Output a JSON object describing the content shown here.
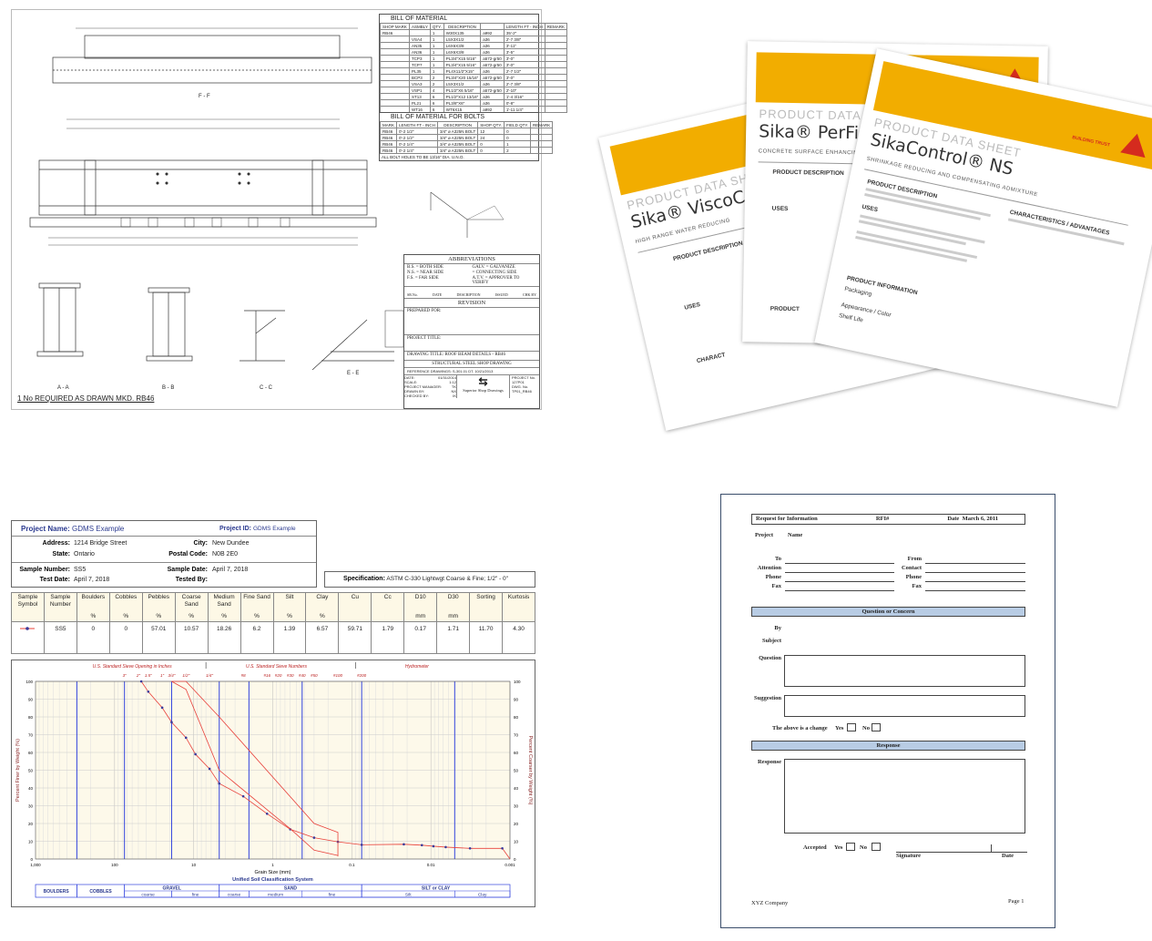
{
  "drawing": {
    "section_labels": [
      "F - F",
      "A - A",
      "B - B",
      "C - C",
      "E - E"
    ],
    "required_note": "1 No REQUIRED AS DRAWN MKD. RB46",
    "bom": {
      "title": "BILL OF MATERIAL",
      "headers": [
        "SHOP MARK",
        "ASMBLY",
        "QTY.",
        "DESCRIPTION",
        "",
        "LENGTH FT - INCH",
        "REMARK"
      ],
      "rows": [
        [
          "RB46",
          "",
          "1",
          "W30X135",
          "a992",
          "35'-2\"",
          ""
        ],
        [
          "",
          "VSA4",
          "1",
          "L5X3X1/2",
          "a36",
          "2'-7 3/8\"",
          ""
        ],
        [
          "",
          "AN35",
          "1",
          "L6X6X3/8",
          "a36",
          "3'-11\"",
          ""
        ],
        [
          "",
          "AN36",
          "1",
          "L6X6X3/8",
          "a36",
          "3'-5\"",
          ""
        ],
        [
          "",
          "TCP3",
          "1",
          "PL3/4\"X15 5/16\"",
          "a572-gr50",
          "3'-0\"",
          ""
        ],
        [
          "",
          "TCP7",
          "1",
          "PL3/4\"X15 5/16\"",
          "a572-gr50",
          "3'-0\"",
          ""
        ],
        [
          "",
          "PL35",
          "1",
          "PL4X11/2\"X15\"",
          "a36",
          "2'-7 1/2\"",
          ""
        ],
        [
          "",
          "BCP3",
          "2",
          "PL3/4\"X20 15/16\"",
          "a572-gr50",
          "3'-0\"",
          ""
        ],
        [
          "",
          "VSA3",
          "2",
          "L5X3X1/2",
          "a36",
          "2'-7 3/8\"",
          ""
        ],
        [
          "",
          "VSP1",
          "4",
          "PL1/2\"X6 5/16\"",
          "a572-gr50",
          "2'-10\"",
          ""
        ],
        [
          "",
          "ST13",
          "6",
          "PL1/2\"X12 13/16\"",
          "a36",
          "1'-4 3/16\"",
          ""
        ],
        [
          "",
          "PL21",
          "6",
          "PL3/8\"X6\"",
          "a36",
          "0'-8\"",
          ""
        ],
        [
          "",
          "WT16",
          "6",
          "WT6X15",
          "a992",
          "1'-11 1/4\"",
          ""
        ]
      ]
    },
    "bolt_bom": {
      "title": "BILL OF MATERIAL FOR BOLTS",
      "headers": [
        "MARK",
        "LENGTH FT - INCH",
        "DESCRIPTION",
        "SHOP QTY.",
        "FIELD QTY.",
        "REMARK"
      ],
      "rows": [
        [
          "RB46",
          "0'-2 1/2\"",
          "3/4\" ø A325N BOLT",
          "12",
          "0",
          ""
        ],
        [
          "RB46",
          "0'-2 1/2\"",
          "3/4\" ø A325N BOLT",
          "24",
          "0",
          ""
        ],
        [
          "RB46",
          "0'-2 1/4\"",
          "3/4\" ø A325N BOLT",
          "0",
          "1",
          ""
        ],
        [
          "RB46",
          "0'-2 1/4\"",
          "3/4\" ø A325N BOLT",
          "0",
          "2",
          ""
        ]
      ],
      "note": "ALL BOLT HOLES TO BE 13/16\" DIA. U.N.O."
    },
    "title_block": {
      "abbrev_title": "ABBREVIATIONS",
      "abbrevs": [
        "B.S. = BOTH SIDE",
        "GALV. = GALVANIZE",
        "N.S. = NEAR SIDE",
        "= CONNECTING SIDE",
        "F.S. = FAR SIDE",
        "A.T.V. = APPROVER TO VERIFY"
      ],
      "revision_headers": [
        "SR.No.",
        "DATE",
        "DESCRIPTION",
        "ISSUED",
        "CHK BY"
      ],
      "revision": "REVISION",
      "prepared_for": "PREPARED FOR:",
      "project_title": "PROJECT TITLE:",
      "drawing_title": "DRAWING TITLE: ROOF BEAM DETAILS - RB46",
      "drawing_type": "STRUCTURAL STEEL SHOP DRAWING",
      "reference": "REFERENCE DRAWINGS: S-301.01 DT. 10/21/2013",
      "date_label": "DATE:",
      "date": "01/31/2014",
      "scale_label": "SCALE:",
      "scale": "1:12",
      "pm_label": "PROJECT MANAGER:",
      "pm": "TK",
      "drawn_label": "DRAWN BY:",
      "drawn": "NX",
      "checked_label": "CHECKED BY:",
      "checked": "IK",
      "company": "Superior Shop Drawings",
      "project_no_label": "PROJECT No.",
      "project_no": "127P01",
      "dwg_no_label": "DWG. No.",
      "dwg_no": "TP01_RB46"
    }
  },
  "sika": {
    "brand_color": "#f2ad00",
    "logo_color": "#d52b1e",
    "sheets": [
      {
        "header": "PRODUCT DATA SHEET",
        "name": "Sika® ViscoCrete",
        "subtitle": "HIGH RANGE WATER REDUCING",
        "sections": [
          "PRODUCT DESCRIPTION",
          "USES",
          "CHARACT"
        ]
      },
      {
        "header": "PRODUCT DATA SHEET",
        "name": "Sika® PerFin-305",
        "subtitle": "CONCRETE SURFACE ENHANCING A",
        "sections": [
          "PRODUCT DESCRIPTION",
          "USES",
          "PRODUCT"
        ]
      },
      {
        "header": "PRODUCT DATA SHEET",
        "name": "SikaControl® NS",
        "subtitle": "SHRINKAGE REDUCING AND COMPENSATING ADMIXTURE",
        "tagline": "BUILDING TRUST",
        "sections": [
          "PRODUCT DESCRIPTION",
          "USES",
          "CHARACTERISTICS / ADVANTAGES",
          "PRODUCT INFORMATION"
        ],
        "info_rows": [
          "Packaging",
          "Appearance / Color",
          "Shelf Life"
        ]
      }
    ]
  },
  "soil": {
    "project_name_label": "Project Name:",
    "project_name": "GDMS Example",
    "project_id_label": "Project ID:",
    "project_id": "GDMS Example",
    "address_label": "Address:",
    "address": "1214 Bridge Street",
    "city_label": "City:",
    "city": "New Dundee",
    "state_label": "State:",
    "state": "Ontario",
    "postal_label": "Postal Code:",
    "postal": "N0B 2E0",
    "sample_number_label": "Sample Number:",
    "sample_number": "SS5",
    "sample_date_label": "Sample Date:",
    "sample_date": "April 7, 2018",
    "test_date_label": "Test Date:",
    "test_date": "April 7, 2018",
    "tested_by_label": "Tested By:",
    "spec_label": "Specification:",
    "spec": "ASTM C-330 Lightwgt Coarse & Fine; 1/2\" - 0\"",
    "table": {
      "headers": [
        {
          "name": "Sample Symbol",
          "unit": ""
        },
        {
          "name": "Sample Number",
          "unit": ""
        },
        {
          "name": "Boulders",
          "unit": "%"
        },
        {
          "name": "Cobbles",
          "unit": "%"
        },
        {
          "name": "Pebbles",
          "unit": "%"
        },
        {
          "name": "Coarse Sand",
          "unit": "%"
        },
        {
          "name": "Medium Sand",
          "unit": "%"
        },
        {
          "name": "Fine Sand",
          "unit": "%"
        },
        {
          "name": "Silt",
          "unit": "%"
        },
        {
          "name": "Clay",
          "unit": "%"
        },
        {
          "name": "Cu",
          "unit": ""
        },
        {
          "name": "Cc",
          "unit": ""
        },
        {
          "name": "D10",
          "unit": "mm"
        },
        {
          "name": "D30",
          "unit": "mm"
        },
        {
          "name": "Sorting",
          "unit": ""
        },
        {
          "name": "Kurtosis",
          "unit": ""
        }
      ],
      "row": [
        "",
        "SS5",
        "0",
        "0",
        "57.01",
        "10.57",
        "18.26",
        "6.2",
        "1.39",
        "6.57",
        "59.71",
        "1.79",
        "0.17",
        "1.71",
        "11.70",
        "4.30"
      ]
    }
  },
  "chart_data": {
    "type": "line",
    "xlabel": "Grain Size (mm)",
    "ylabel": "Percent Finer by Weight (%)",
    "y2label": "Percent Coarser by Weight (%)",
    "x_scale": "log",
    "x_reversed": true,
    "xlim": [
      1000,
      0.001
    ],
    "ylim": [
      0,
      100
    ],
    "x_ticks": [
      {
        "v": 1000,
        "t": "1,000"
      },
      {
        "v": 100,
        "t": "100"
      },
      {
        "v": 10,
        "t": "10"
      },
      {
        "v": 1,
        "t": "1"
      },
      {
        "v": 0.1,
        "t": "0.1"
      },
      {
        "v": 0.01,
        "t": "0.01"
      },
      {
        "v": 0.001,
        "t": "0.001"
      }
    ],
    "y_ticks": [
      0,
      10,
      20,
      30,
      40,
      50,
      60,
      70,
      80,
      90,
      100
    ],
    "y2_ticks": [
      100,
      90,
      80,
      70,
      60,
      50,
      40,
      30,
      20,
      10,
      0
    ],
    "grid": true,
    "background": "#fdf9ea",
    "top_headers": [
      "U.S. Standard Sieve Opening in Inches",
      "U.S. Standard Sieve Numbers",
      "Hydrometer"
    ],
    "sieves": [
      {
        "t": "3\"",
        "v": 75
      },
      {
        "t": "2\"",
        "v": 50
      },
      {
        "t": "1.5\"",
        "v": 37.5
      },
      {
        "t": "1\"",
        "v": 25
      },
      {
        "t": "3/4\"",
        "v": 19
      },
      {
        "t": "1/2\"",
        "v": 12.5
      },
      {
        "t": "1/4\"",
        "v": 6.3
      },
      {
        "t": "#8",
        "v": 2.36
      },
      {
        "t": "#16",
        "v": 1.18
      },
      {
        "t": "#20",
        "v": 0.85
      },
      {
        "t": "#30",
        "v": 0.6
      },
      {
        "t": "#40",
        "v": 0.425
      },
      {
        "t": "#50",
        "v": 0.3
      },
      {
        "t": "#100",
        "v": 0.15
      },
      {
        "t": "#200",
        "v": 0.075
      }
    ],
    "boundaries": [
      300,
      75,
      19,
      4.75,
      2,
      0.425,
      0.075,
      0.005
    ],
    "series": [
      {
        "name": "SS5",
        "color": "#e8403a",
        "marker_color": "#3a3a9a",
        "x": [
          46,
          37.5,
          25,
          19,
          12.5,
          9.5,
          6.3,
          4.75,
          2.36,
          1.18,
          0.6,
          0.3,
          0.15,
          0.075,
          0.022,
          0.013,
          0.0093,
          0.0065,
          0.0032,
          0.00125,
          0.001
        ],
        "y": [
          100,
          94.2,
          85.2,
          77,
          68.3,
          59,
          50.8,
          42.5,
          35.3,
          25.5,
          16.7,
          12,
          9.7,
          8,
          8.3,
          7.8,
          7.2,
          6.7,
          6,
          6,
          0
        ],
        "markers": true
      },
      {
        "color": "#e8403a",
        "x": [
          19,
          12.5,
          4.75,
          0.3,
          0.15,
          0.15
        ],
        "y": [
          100,
          100,
          80,
          20,
          15,
          1.5
        ]
      },
      {
        "color": "#e8403a",
        "x": [
          19,
          12.5,
          4.75,
          0.6,
          0.3,
          0.15
        ],
        "y": [
          100,
          95.5,
          50,
          17,
          5,
          2
        ]
      }
    ],
    "uscs": {
      "title": "Unified Soil Classification System",
      "groups": [
        {
          "t": "BOULDERS",
          "from": 1000,
          "to": 300
        },
        {
          "t": "COBBLES",
          "from": 300,
          "to": 75
        },
        {
          "t": "GRAVEL",
          "from": 75,
          "to": 4.75,
          "subs": [
            {
              "t": "coarse",
              "from": 75,
              "to": 19
            },
            {
              "t": "fine",
              "from": 19,
              "to": 4.75
            }
          ]
        },
        {
          "t": "SAND",
          "from": 4.75,
          "to": 0.075,
          "subs": [
            {
              "t": "coarse",
              "from": 4.75,
              "to": 2
            },
            {
              "t": "medium",
              "from": 2,
              "to": 0.425
            },
            {
              "t": "fine",
              "from": 0.425,
              "to": 0.075
            }
          ]
        },
        {
          "t": "SILT or CLAY",
          "from": 0.075,
          "to": 0.001,
          "subs": [
            {
              "t": "Silt",
              "from": 0.075,
              "to": 0.005
            },
            {
              "t": "Clay",
              "from": 0.005,
              "to": 0.001
            }
          ]
        }
      ]
    }
  },
  "rfi": {
    "title": "Request for Information",
    "rfi_label": "RFI#",
    "date_label": "Date",
    "date": "March 6, 2011",
    "project_label": "Project",
    "name_label": "Name",
    "left_fields": [
      "To",
      "Attention",
      "Phone",
      "Fax"
    ],
    "right_fields": [
      "From",
      "Contact",
      "Phone",
      "Fax"
    ],
    "question_band": "Question or Concern",
    "by_label": "By",
    "subject_label": "Subject",
    "question_label": "Question",
    "suggestion_label": "Suggestion",
    "change_label": "The above is a change",
    "yes": "Yes",
    "no": "No",
    "response_band": "Response",
    "response_label": "Response",
    "accepted_label": "Accepted",
    "signature_label": "Signature",
    "sig_date_label": "Date",
    "company": "XYZ Company",
    "page": "Page 1",
    "band_color": "#b8cce4"
  }
}
